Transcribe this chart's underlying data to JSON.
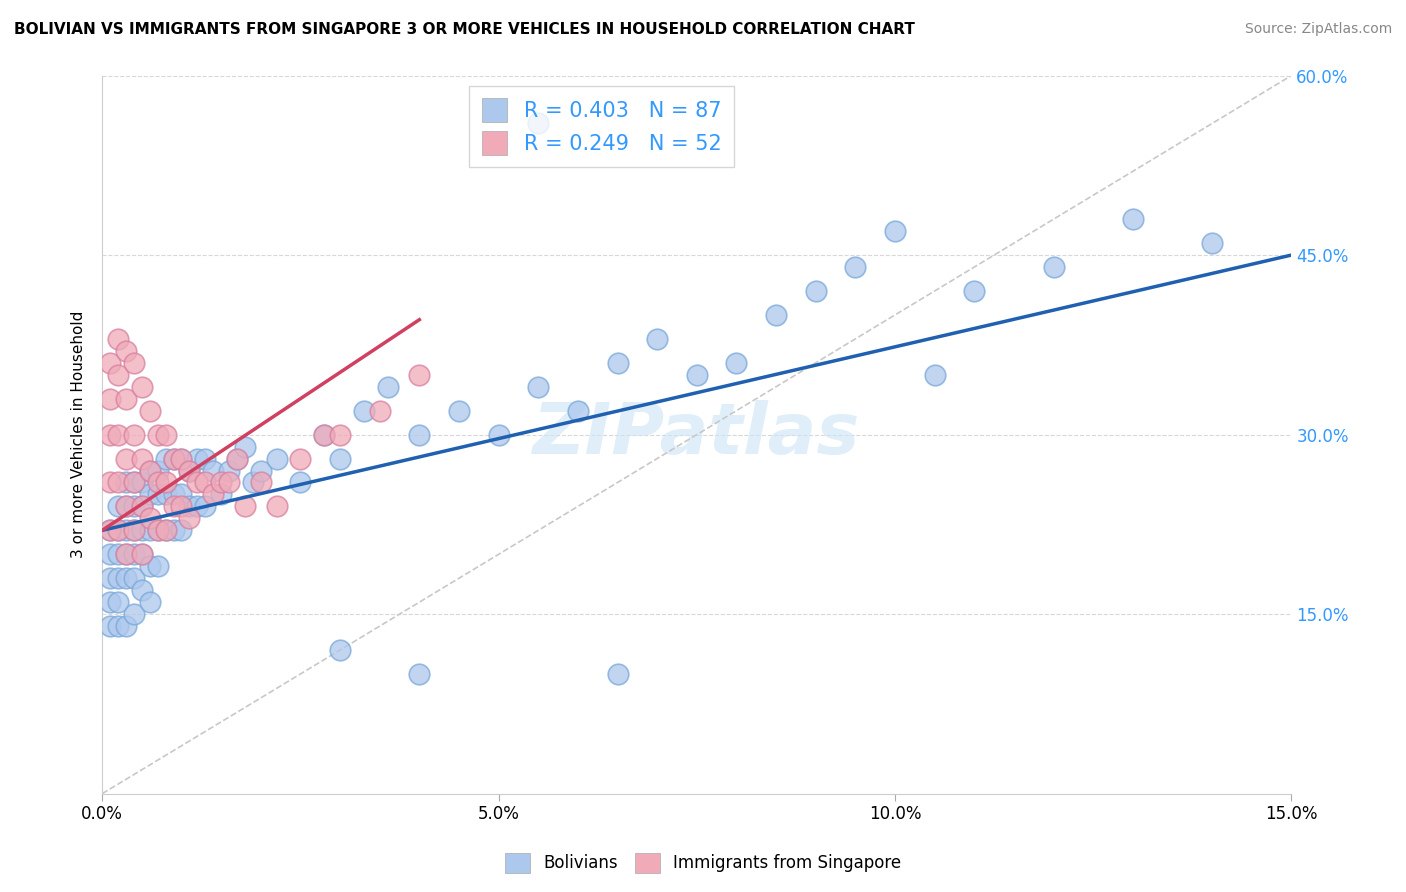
{
  "title": "BOLIVIAN VS IMMIGRANTS FROM SINGAPORE 3 OR MORE VEHICLES IN HOUSEHOLD CORRELATION CHART",
  "source": "Source: ZipAtlas.com",
  "ylabel": "3 or more Vehicles in Household",
  "xlim": [
    0.0,
    0.15
  ],
  "ylim": [
    0.0,
    0.6
  ],
  "xticks": [
    0.0,
    0.05,
    0.1,
    0.15
  ],
  "xticklabels": [
    "0.0%",
    "5.0%",
    "10.0%",
    "15.0%"
  ],
  "yticks": [
    0.15,
    0.3,
    0.45,
    0.6
  ],
  "yticklabels": [
    "15.0%",
    "30.0%",
    "45.0%",
    "60.0%"
  ],
  "legend_R1": "R = 0.403",
  "legend_N1": "N = 87",
  "legend_R2": "R = 0.249",
  "legend_N2": "N = 52",
  "blue_color": "#adc8ed",
  "pink_color": "#f0aab8",
  "blue_line_color": "#2060b0",
  "pink_line_color": "#d04060",
  "ref_line_color": "#c8c8c8",
  "watermark": "ZIPatlas",
  "bolivians_x": [
    0.001,
    0.001,
    0.001,
    0.001,
    0.001,
    0.002,
    0.002,
    0.002,
    0.002,
    0.002,
    0.002,
    0.003,
    0.003,
    0.003,
    0.003,
    0.003,
    0.003,
    0.004,
    0.004,
    0.004,
    0.004,
    0.004,
    0.004,
    0.005,
    0.005,
    0.005,
    0.005,
    0.005,
    0.006,
    0.006,
    0.006,
    0.006,
    0.006,
    0.007,
    0.007,
    0.007,
    0.007,
    0.008,
    0.008,
    0.008,
    0.009,
    0.009,
    0.009,
    0.01,
    0.01,
    0.01,
    0.011,
    0.011,
    0.012,
    0.012,
    0.013,
    0.013,
    0.014,
    0.015,
    0.016,
    0.017,
    0.018,
    0.019,
    0.02,
    0.022,
    0.025,
    0.028,
    0.03,
    0.033,
    0.036,
    0.04,
    0.045,
    0.05,
    0.055,
    0.06,
    0.065,
    0.07,
    0.075,
    0.08,
    0.085,
    0.09,
    0.095,
    0.1,
    0.105,
    0.11,
    0.12,
    0.13,
    0.14,
    0.03,
    0.04,
    0.055,
    0.065
  ],
  "bolivians_y": [
    0.22,
    0.2,
    0.18,
    0.16,
    0.14,
    0.24,
    0.22,
    0.2,
    0.18,
    0.16,
    0.14,
    0.26,
    0.24,
    0.22,
    0.2,
    0.18,
    0.14,
    0.26,
    0.24,
    0.22,
    0.2,
    0.18,
    0.15,
    0.26,
    0.24,
    0.22,
    0.2,
    0.17,
    0.27,
    0.25,
    0.22,
    0.19,
    0.16,
    0.27,
    0.25,
    0.22,
    0.19,
    0.28,
    0.25,
    0.22,
    0.28,
    0.25,
    0.22,
    0.28,
    0.25,
    0.22,
    0.27,
    0.24,
    0.28,
    0.24,
    0.28,
    0.24,
    0.27,
    0.25,
    0.27,
    0.28,
    0.29,
    0.26,
    0.27,
    0.28,
    0.26,
    0.3,
    0.28,
    0.32,
    0.34,
    0.3,
    0.32,
    0.3,
    0.34,
    0.32,
    0.36,
    0.38,
    0.35,
    0.36,
    0.4,
    0.42,
    0.44,
    0.47,
    0.35,
    0.42,
    0.44,
    0.48,
    0.46,
    0.12,
    0.1,
    0.56,
    0.1
  ],
  "singapore_x": [
    0.001,
    0.001,
    0.001,
    0.001,
    0.001,
    0.002,
    0.002,
    0.002,
    0.002,
    0.002,
    0.003,
    0.003,
    0.003,
    0.003,
    0.003,
    0.004,
    0.004,
    0.004,
    0.004,
    0.005,
    0.005,
    0.005,
    0.005,
    0.006,
    0.006,
    0.006,
    0.007,
    0.007,
    0.007,
    0.008,
    0.008,
    0.008,
    0.009,
    0.009,
    0.01,
    0.01,
    0.011,
    0.011,
    0.012,
    0.013,
    0.014,
    0.015,
    0.016,
    0.017,
    0.018,
    0.02,
    0.022,
    0.025,
    0.028,
    0.03,
    0.035,
    0.04
  ],
  "singapore_y": [
    0.36,
    0.33,
    0.3,
    0.26,
    0.22,
    0.38,
    0.35,
    0.3,
    0.26,
    0.22,
    0.37,
    0.33,
    0.28,
    0.24,
    0.2,
    0.36,
    0.3,
    0.26,
    0.22,
    0.34,
    0.28,
    0.24,
    0.2,
    0.32,
    0.27,
    0.23,
    0.3,
    0.26,
    0.22,
    0.3,
    0.26,
    0.22,
    0.28,
    0.24,
    0.28,
    0.24,
    0.27,
    0.23,
    0.26,
    0.26,
    0.25,
    0.26,
    0.26,
    0.28,
    0.24,
    0.26,
    0.24,
    0.28,
    0.3,
    0.3,
    0.32,
    0.35
  ]
}
